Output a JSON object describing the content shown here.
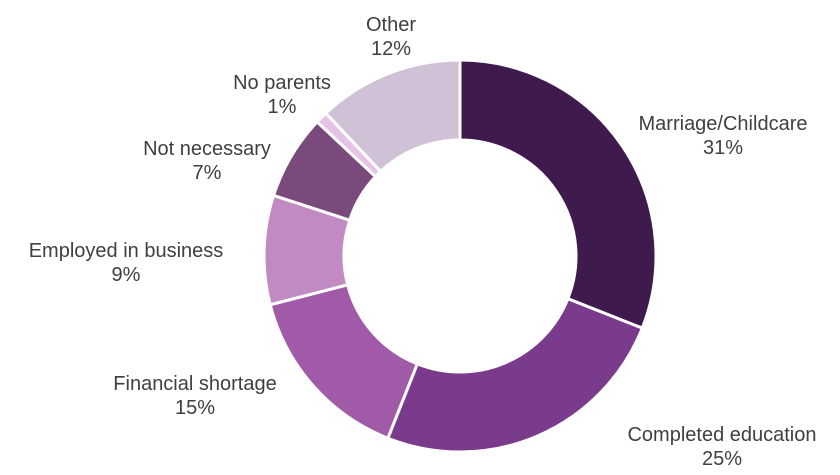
{
  "chart_data": {
    "type": "pie",
    "variant": "donut",
    "title": "",
    "slices": [
      {
        "label": "Marriage/Childcare",
        "value": 31,
        "value_label": "31%",
        "color": "#3f1a4d"
      },
      {
        "label": "Completed education",
        "value": 25,
        "value_label": "25%",
        "color": "#7b3b8c"
      },
      {
        "label": "Financial shortage",
        "value": 15,
        "value_label": "15%",
        "color": "#a05aa8"
      },
      {
        "label": "Employed in business",
        "value": 9,
        "value_label": "9%",
        "color": "#c28ac2"
      },
      {
        "label": "Not necessary",
        "value": 7,
        "value_label": "7%",
        "color": "#7b4a7d"
      },
      {
        "label": "No parents",
        "value": 1,
        "value_label": "1%",
        "color": "#e6c3e6"
      },
      {
        "label": "Other",
        "value": 12,
        "value_label": "12%",
        "color": "#d1c1d6"
      }
    ],
    "start_angle": "12 o'clock",
    "direction": "clockwise",
    "legend": "none",
    "label_color": "#404040"
  }
}
